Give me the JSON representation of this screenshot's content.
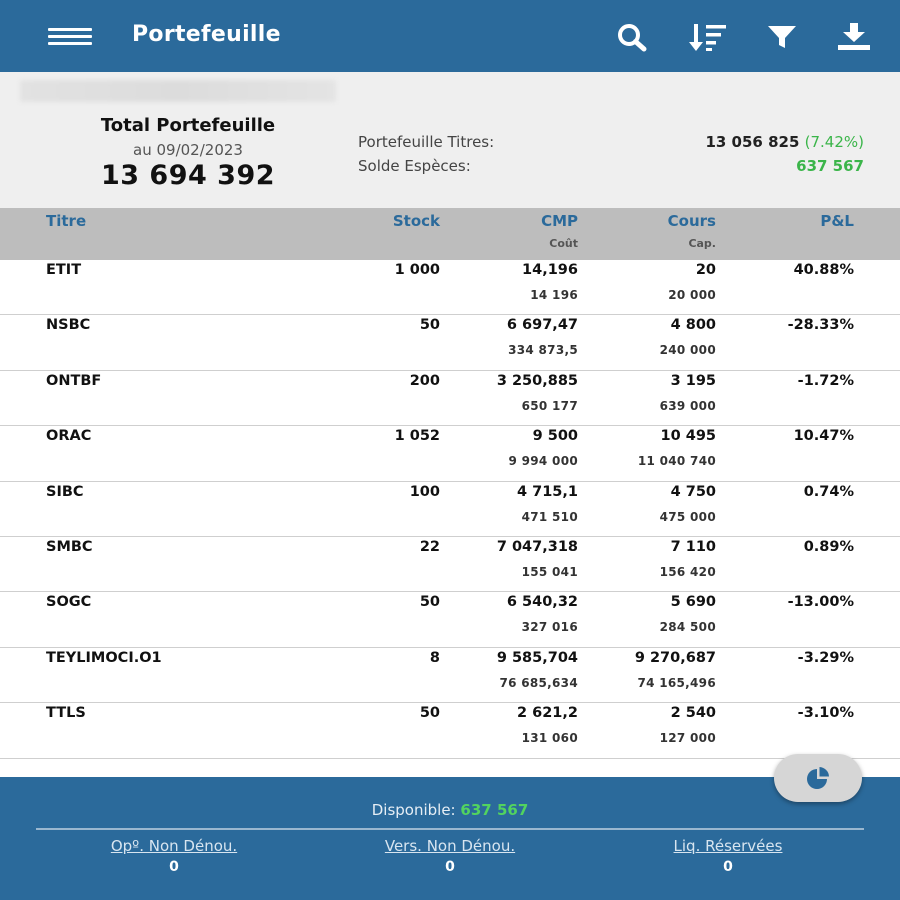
{
  "header": {
    "title": "Portefeuille",
    "icons": [
      "menu-icon",
      "search-icon",
      "sort-icon",
      "filter-icon",
      "download-icon"
    ]
  },
  "summary": {
    "total_title": "Total Portefeuille",
    "date": "au 09/02/2023",
    "total_value": "13 694 392",
    "titres_label": "Portefeuille Titres:",
    "titres_value": "13 056 825",
    "titres_pct": "(7.42%)",
    "especes_label": "Solde Espèces:",
    "especes_value": "637 567"
  },
  "table": {
    "headers": {
      "titre": "Titre",
      "stock": "Stock",
      "cmp": "CMP",
      "cout": "Coût",
      "cours": "Cours",
      "cap": "Cap.",
      "pl": "P&L"
    },
    "rows": [
      {
        "titre": "ETIT",
        "stock": "1 000",
        "cmp": "14,196",
        "cout": "14 196",
        "cours": "20",
        "cap": "20 000",
        "pl": "40.88%",
        "trend": "up"
      },
      {
        "titre": "NSBC",
        "stock": "50",
        "cmp": "6 697,47",
        "cout": "334 873,5",
        "cours": "4 800",
        "cap": "240 000",
        "pl": "-28.33%",
        "trend": "down"
      },
      {
        "titre": "ONTBF",
        "stock": "200",
        "cmp": "3 250,885",
        "cout": "650 177",
        "cours": "3 195",
        "cap": "639 000",
        "pl": "-1.72%",
        "trend": "down"
      },
      {
        "titre": "ORAC",
        "stock": "1 052",
        "cmp": "9 500",
        "cout": "9 994 000",
        "cours": "10 495",
        "cap": "11 040 740",
        "pl": "10.47%",
        "trend": "up"
      },
      {
        "titre": "SIBC",
        "stock": "100",
        "cmp": "4 715,1",
        "cout": "471 510",
        "cours": "4 750",
        "cap": "475 000",
        "pl": "0.74%",
        "trend": "up"
      },
      {
        "titre": "SMBC",
        "stock": "22",
        "cmp": "7 047,318",
        "cout": "155 041",
        "cours": "7 110",
        "cap": "156 420",
        "pl": "0.89%",
        "trend": "up"
      },
      {
        "titre": "SOGC",
        "stock": "50",
        "cmp": "6 540,32",
        "cout": "327 016",
        "cours": "5 690",
        "cap": "284 500",
        "pl": "-13.00%",
        "trend": "down"
      },
      {
        "titre": "TEYLIMOCI.O1",
        "stock": "8",
        "cmp": "9 585,704",
        "cout": "76 685,634",
        "cours": "9 270,687",
        "cap": "74 165,496",
        "pl": "-3.29%",
        "trend": "down"
      },
      {
        "titre": "TTLS",
        "stock": "50",
        "cmp": "2 621,2",
        "cout": "131 060",
        "cours": "2 540",
        "cap": "127 000",
        "pl": "-3.10%",
        "trend": "down"
      }
    ]
  },
  "footer": {
    "disponible_label": "Disponible:",
    "disponible_value": "637 567",
    "columns": [
      {
        "label": "Opº. Non Dénou.",
        "value": "0"
      },
      {
        "label": "Vers. Non Dénou.",
        "value": "0"
      },
      {
        "label": "Liq. Réservées",
        "value": "0"
      }
    ]
  },
  "fab_icon": "pie-chart-icon",
  "colors": {
    "primary": "#2b6a9b",
    "gain": "#3bb54a",
    "loss": "#e0464b",
    "header_bg": "#bdbdbd"
  }
}
